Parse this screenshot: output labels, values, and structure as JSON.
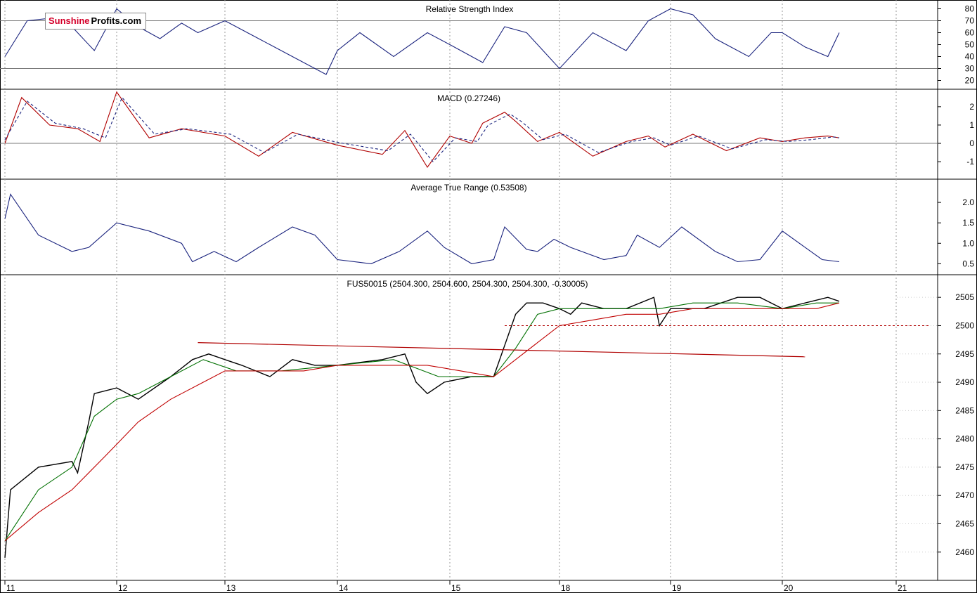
{
  "logo": {
    "part1": "Sunshine",
    "part2": "Profits.com"
  },
  "x_axis": {
    "labels": [
      "11",
      "12",
      "13",
      "14",
      "15",
      "18",
      "19",
      "20",
      "21"
    ]
  },
  "chart_data": [
    {
      "type": "line",
      "title": "Relative Strength Index",
      "yticks": [
        20,
        30,
        40,
        50,
        60,
        70,
        80
      ],
      "ylim": [
        15,
        85
      ],
      "reference_lines": [
        30,
        70
      ],
      "series": [
        {
          "name": "RSI",
          "color": "#1a237e",
          "x": [
            0,
            0.2,
            0.4,
            0.6,
            0.8,
            1.0,
            1.2,
            1.4,
            1.6,
            1.75,
            2.0,
            2.3,
            2.6,
            2.9,
            3.0,
            3.2,
            3.5,
            3.8,
            4.0,
            4.3,
            4.5,
            4.7,
            4.85,
            5.0,
            5.3,
            5.6,
            5.8,
            6.0,
            6.2,
            6.4,
            6.7,
            6.9,
            7.0,
            7.2,
            7.4,
            7.5
          ],
          "values": [
            40,
            70,
            72,
            65,
            45,
            80,
            65,
            55,
            68,
            60,
            70,
            55,
            40,
            25,
            45,
            60,
            40,
            60,
            50,
            35,
            65,
            60,
            45,
            30,
            60,
            45,
            70,
            80,
            75,
            55,
            40,
            60,
            60,
            48,
            40,
            60
          ]
        }
      ]
    },
    {
      "type": "line",
      "title": "MACD (0.27246)",
      "yticks": [
        -1,
        0,
        1,
        2
      ],
      "ylim": [
        -1.8,
        2.8
      ],
      "reference_lines": [
        0
      ],
      "series": [
        {
          "name": "MACD",
          "color": "#b00000",
          "x": [
            0,
            0.15,
            0.4,
            0.65,
            0.85,
            1.0,
            1.3,
            1.6,
            2.0,
            2.3,
            2.6,
            3.0,
            3.4,
            3.6,
            3.8,
            4.0,
            4.2,
            4.3,
            4.5,
            4.6,
            4.8,
            5.0,
            5.3,
            5.6,
            5.8,
            5.95,
            6.2,
            6.5,
            6.8,
            7.0,
            7.2,
            7.4,
            7.5
          ],
          "values": [
            0,
            2.5,
            1.0,
            0.8,
            0.1,
            2.8,
            0.3,
            0.8,
            0.4,
            -0.7,
            0.6,
            -0.1,
            -0.6,
            0.7,
            -1.3,
            0.4,
            0,
            1.1,
            1.7,
            1.2,
            0.1,
            0.6,
            -0.7,
            0.1,
            0.4,
            -0.2,
            0.5,
            -0.4,
            0.3,
            0.1,
            0.3,
            0.4,
            0.3
          ]
        },
        {
          "name": "Signal",
          "color": "#1a237e",
          "dashed": true,
          "x": [
            0,
            0.2,
            0.45,
            0.7,
            0.9,
            1.05,
            1.35,
            1.65,
            2.05,
            2.35,
            2.65,
            3.05,
            3.45,
            3.65,
            3.85,
            4.05,
            4.25,
            4.35,
            4.55,
            4.65,
            4.85,
            5.05,
            5.35,
            5.65,
            5.85,
            6.0,
            6.25,
            6.55,
            6.85,
            7.05,
            7.25,
            7.45,
            7.5
          ],
          "values": [
            0.2,
            2.3,
            1.1,
            0.8,
            0.3,
            2.5,
            0.5,
            0.8,
            0.5,
            -0.5,
            0.5,
            0,
            -0.4,
            0.5,
            -1.0,
            0.3,
            0.1,
            1.0,
            1.6,
            1.2,
            0.2,
            0.5,
            -0.5,
            0.1,
            0.3,
            -0.1,
            0.4,
            -0.3,
            0.2,
            0.1,
            0.2,
            0.35,
            0.3
          ]
        }
      ]
    },
    {
      "type": "line",
      "title": "Average True Range (0.53508)",
      "yticks": [
        0.5,
        1.0,
        1.5,
        2.0
      ],
      "ylim": [
        0.3,
        2.5
      ],
      "series": [
        {
          "name": "ATR",
          "color": "#1a237e",
          "x": [
            0,
            0.05,
            0.3,
            0.6,
            0.75,
            1.0,
            1.3,
            1.6,
            1.7,
            1.9,
            2.1,
            2.3,
            2.6,
            2.8,
            3.0,
            3.3,
            3.55,
            3.8,
            3.95,
            4.2,
            4.4,
            4.5,
            4.7,
            4.8,
            4.95,
            5.1,
            5.4,
            5.6,
            5.7,
            5.9,
            6.1,
            6.4,
            6.6,
            6.8,
            7.0,
            7.2,
            7.35,
            7.5
          ],
          "values": [
            1.6,
            2.2,
            1.2,
            0.8,
            0.9,
            1.5,
            1.3,
            1.0,
            0.55,
            0.8,
            0.55,
            0.9,
            1.4,
            1.2,
            0.6,
            0.5,
            0.8,
            1.3,
            0.9,
            0.5,
            0.6,
            1.4,
            0.85,
            0.8,
            1.1,
            0.9,
            0.6,
            0.7,
            1.2,
            0.9,
            1.4,
            0.8,
            0.55,
            0.6,
            1.3,
            0.9,
            0.6,
            0.55
          ]
        }
      ]
    },
    {
      "type": "line",
      "title": "FUS50015 (2504.300, 2504.600, 2504.300, 2504.300, -0.30005)",
      "yticks": [
        2460,
        2465,
        2470,
        2475,
        2480,
        2485,
        2490,
        2495,
        2500,
        2505
      ],
      "ylim": [
        2456,
        2508
      ],
      "series": [
        {
          "name": "Price",
          "color": "#000000",
          "x": [
            0,
            0.05,
            0.3,
            0.6,
            0.65,
            0.75,
            0.8,
            1.0,
            1.2,
            1.5,
            1.7,
            1.85,
            2.0,
            2.15,
            2.4,
            2.6,
            2.8,
            3.0,
            3.4,
            3.6,
            3.7,
            3.8,
            3.95,
            4.2,
            4.4,
            4.6,
            4.7,
            4.85,
            5.0,
            5.1,
            5.2,
            5.4,
            5.6,
            5.85,
            5.9,
            6.0,
            6.3,
            6.6,
            6.8,
            7.0,
            7.2,
            7.4,
            7.5
          ],
          "values": [
            2459,
            2471,
            2475,
            2476,
            2474,
            2483,
            2488,
            2489,
            2487,
            2491,
            2494,
            2495,
            2494,
            2493,
            2491,
            2494,
            2493,
            2493,
            2494,
            2495,
            2490,
            2488,
            2490,
            2491,
            2491,
            2502,
            2504,
            2504,
            2503,
            2502,
            2504,
            2503,
            2503,
            2505,
            2500,
            2503,
            2503,
            2505,
            2505,
            2503,
            2504,
            2505,
            2504.3
          ]
        },
        {
          "name": "Short MA",
          "color": "#007000",
          "x": [
            0,
            0.3,
            0.6,
            0.8,
            1.0,
            1.2,
            1.5,
            1.8,
            2.1,
            2.5,
            3.0,
            3.5,
            3.9,
            4.1,
            4.4,
            4.6,
            4.8,
            5.0,
            5.3,
            5.6,
            5.9,
            6.2,
            6.6,
            7.0,
            7.3,
            7.5
          ],
          "values": [
            2462,
            2471,
            2475,
            2484,
            2487,
            2488,
            2491,
            2494,
            2492,
            2492,
            2493,
            2494,
            2491,
            2491,
            2491,
            2496,
            2502,
            2503,
            2503,
            2503,
            2503,
            2504,
            2504,
            2503,
            2504,
            2504
          ]
        },
        {
          "name": "Long MA",
          "color": "#c00000",
          "x": [
            0,
            0.3,
            0.6,
            0.9,
            1.2,
            1.5,
            1.8,
            2.0,
            2.3,
            2.7,
            3.0,
            3.4,
            3.8,
            4.1,
            4.4,
            4.6,
            4.8,
            5.0,
            5.3,
            5.6,
            5.9,
            6.2,
            6.6,
            7.0,
            7.3,
            7.5
          ],
          "values": [
            2462,
            2467,
            2471,
            2477,
            2483,
            2487,
            2490,
            2492,
            2492,
            2492,
            2493,
            2493,
            2493,
            2492,
            2491,
            2494,
            2497,
            2500,
            2501,
            2502,
            2502,
            2503,
            2503,
            2503,
            2503,
            2504
          ]
        }
      ],
      "annotations": [
        {
          "type": "trendline",
          "color": "#b00000",
          "from": [
            1.75,
            2497
          ],
          "to": [
            7.2,
            2494.5
          ]
        },
        {
          "type": "hline",
          "color": "#b00000",
          "dashed": true,
          "value": 2500,
          "from_x": 4.5,
          "to_x": 8.3
        }
      ]
    }
  ]
}
